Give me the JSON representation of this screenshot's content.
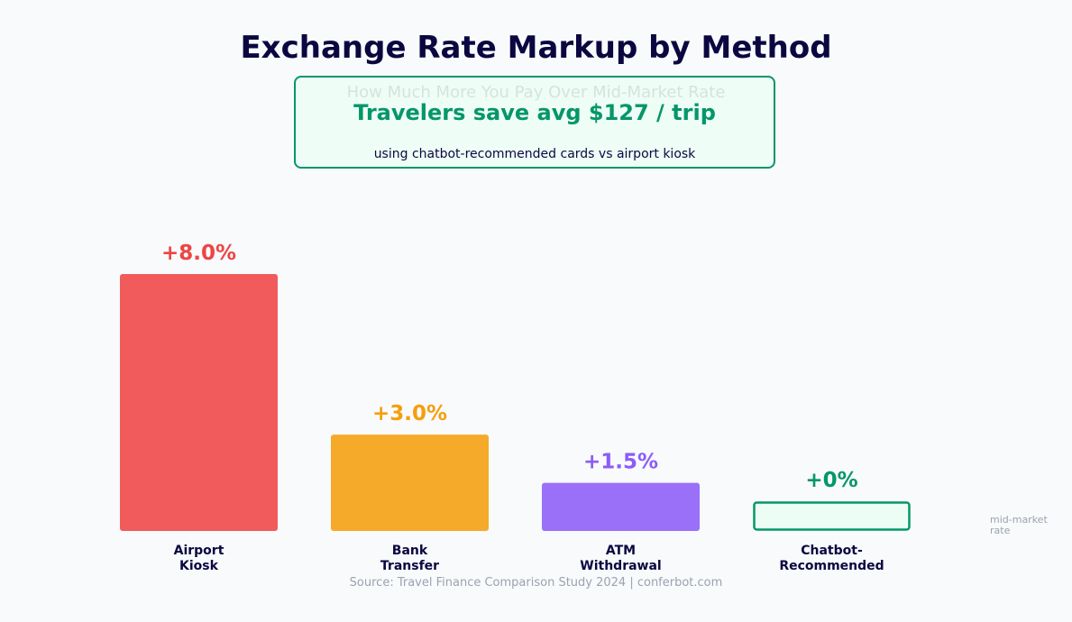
{
  "chart_data": {
    "type": "bar",
    "title": "Exchange Rate Markup by Method",
    "subtitle": "How Much More You Pay Over Mid-Market Rate",
    "categories": [
      [
        "Airport",
        "Kiosk"
      ],
      [
        "Bank",
        "Transfer"
      ],
      [
        "ATM",
        "Withdrawal"
      ],
      [
        "Chatbot-",
        "Recommended"
      ]
    ],
    "values": [
      8.0,
      3.0,
      1.5,
      0
    ],
    "value_labels": [
      "+8.0%",
      "+3.0%",
      "+1.5%",
      "+0%"
    ],
    "colors": [
      "#ef4444",
      "#f59e0b",
      "#8b5cf6",
      "#059669"
    ],
    "ylim": [
      0,
      8
    ],
    "grid": false,
    "annotation": {
      "headline": "Travelers save avg $127 / trip",
      "detail": "using chatbot-recommended cards vs airport kiosk"
    },
    "baseline_note": [
      "mid-market",
      "rate"
    ],
    "source": "Source: Travel Finance Comparison Study 2024  |  conferbot.com"
  }
}
